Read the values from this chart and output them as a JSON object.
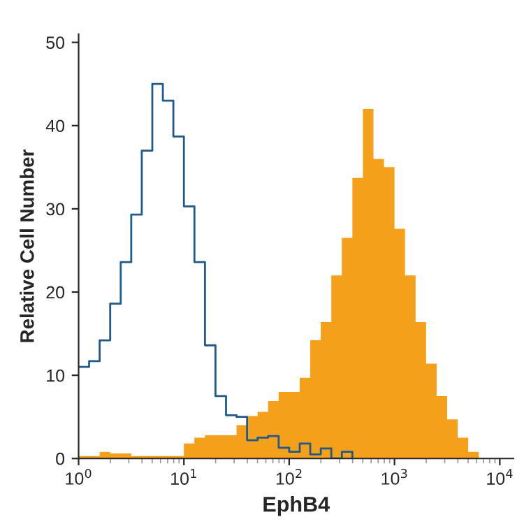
{
  "chart_data": {
    "type": "histogram",
    "xlabel": "EphB4",
    "ylabel": "Relative Cell Number",
    "bins": [
      1,
      1.259,
      1.585,
      1.995,
      2.512,
      3.162,
      3.981,
      5.012,
      6.31,
      7.943,
      10,
      12.59,
      15.85,
      19.95,
      25.12,
      31.62,
      39.81,
      50.12,
      63.1,
      79.43,
      100,
      125.9,
      158.5,
      199.5,
      251.2,
      316.2,
      398.1,
      501.2,
      631,
      794.3,
      1000,
      1259,
      1585,
      1995,
      2512,
      3162,
      3981,
      5012,
      6310,
      7943,
      10000
    ],
    "series": [
      {
        "color": "#f5a01a",
        "values": [
          0.3,
          0.3,
          0.8,
          0.6,
          0.6,
          0.3,
          0.3,
          0.3,
          0.3,
          0.3,
          1.8,
          2.5,
          2.8,
          2.8,
          2.8,
          4,
          5.1,
          5.6,
          6.9,
          8,
          8,
          9.7,
          14.2,
          16.4,
          22,
          26.5,
          33.7,
          42,
          36,
          35,
          27.6,
          22,
          16.4,
          11.4,
          7.5,
          4.7,
          2.5,
          0.8,
          0,
          0
        ]
      },
      {
        "type": "step",
        "color": "#1f5a8a",
        "x": [
          1,
          1.259,
          1.585,
          1.995,
          2.512,
          3.162,
          3.981,
          5.012,
          6.31,
          7.943,
          10,
          12.59,
          15.85,
          19.95,
          25.12,
          31.62,
          39.81,
          50.12,
          63.1,
          79.43,
          100,
          125.9,
          158.5,
          199.5,
          251.2,
          316.2,
          398.1
        ],
        "values": [
          11,
          11.7,
          14.2,
          18.6,
          23.6,
          29.3,
          37,
          45,
          43,
          38.7,
          30.3,
          23.6,
          13.6,
          7.5,
          5.2,
          5,
          2.2,
          2.5,
          2.7,
          1.3,
          0.8,
          1.8,
          0.5,
          1.2,
          0,
          0.8,
          0
        ]
      }
    ],
    "log": "x",
    "xlim": [
      1,
      13500
    ],
    "ylim": [
      0,
      51
    ],
    "xticks": [
      {
        "value": 1,
        "label": "10$^{0}$"
      },
      {
        "value": 10,
        "label": "10$^{1}$"
      },
      {
        "value": 100,
        "label": "10$^{2}$"
      },
      {
        "value": 1000,
        "label": "10$^{3}$"
      },
      {
        "value": 10000,
        "label": "10$^{4}$"
      }
    ],
    "yticks": [
      0,
      10,
      20,
      30,
      40,
      50
    ],
    "grid": false,
    "legend": false
  }
}
